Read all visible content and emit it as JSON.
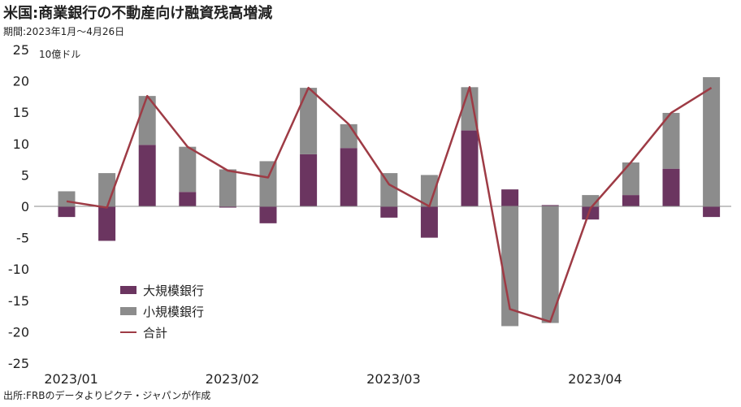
{
  "header": {
    "title": "米国:商業銀行の不動産向け融資残高増減",
    "subtitle": "期間:2023年1月～4月26日",
    "unit": "10億ドル",
    "source": "出所:FRBのデータよりピクテ・ジャパンが作成"
  },
  "chart_data": {
    "type": "bar",
    "stacked": true,
    "weeks": 17,
    "ylim": [
      -25,
      25
    ],
    "yticks": [
      25,
      20,
      15,
      10,
      5,
      0,
      -5,
      -10,
      -15,
      -20,
      -25
    ],
    "xtick_labels": [
      {
        "label": "2023/01",
        "week": 1
      },
      {
        "label": "2023/02",
        "week": 5
      },
      {
        "label": "2023/03",
        "week": 9
      },
      {
        "label": "2023/04",
        "week": 14
      }
    ],
    "series": [
      {
        "name": "大規模銀行",
        "type": "bar",
        "color": "#6b3560",
        "values": [
          -1.7,
          -5.5,
          9.8,
          2.3,
          -0.2,
          -2.7,
          8.3,
          9.3,
          -1.8,
          -5.0,
          12.1,
          2.7,
          0.2,
          -2.1,
          1.8,
          6.0,
          -1.7
        ]
      },
      {
        "name": "小規模銀行",
        "type": "bar",
        "color": "#8c8c8c",
        "values": [
          2.4,
          5.3,
          7.8,
          7.2,
          5.9,
          7.2,
          10.6,
          3.8,
          5.3,
          5.0,
          6.9,
          -19.1,
          -18.6,
          1.8,
          5.2,
          8.9,
          20.6
        ]
      },
      {
        "name": "合計",
        "type": "line",
        "color": "#9e3b45",
        "values": [
          0.8,
          -0.2,
          17.6,
          9.5,
          5.7,
          4.6,
          18.9,
          13.1,
          3.5,
          0.0,
          19.0,
          -16.4,
          -18.4,
          -0.3,
          7.0,
          14.9,
          18.9
        ]
      }
    ],
    "legend": "lower-left",
    "grid": false
  }
}
